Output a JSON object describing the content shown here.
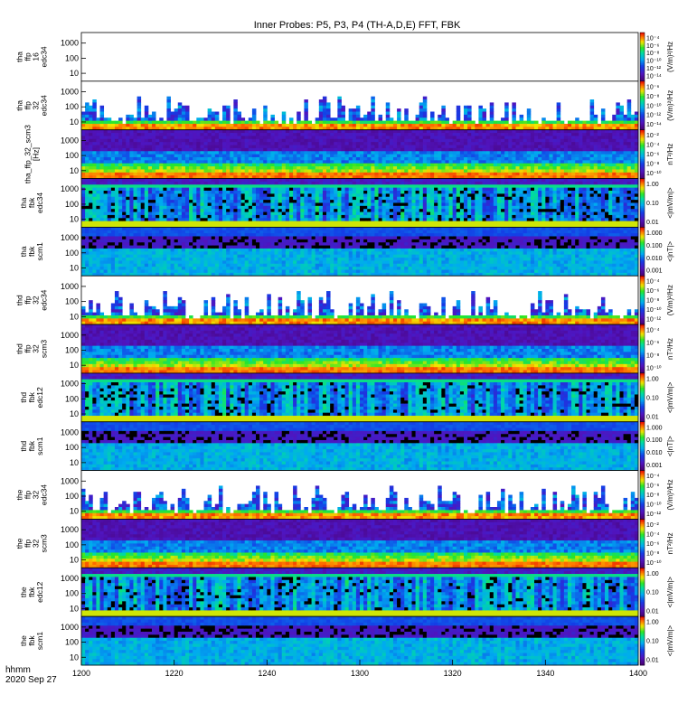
{
  "chart_data": {
    "type": "heatmap",
    "title": "Inner Probes: P5, P3, P4 (TH-A,D,E) FFT, FBK",
    "time_axis": {
      "start": "1200",
      "end": "1400",
      "tick_labels": [
        "1200",
        "1220",
        "1240",
        "1300",
        "1320",
        "1340",
        "1400"
      ],
      "label_format": "hhmm",
      "date": "2020 Sep 27"
    },
    "freq_tick_labels": [
      "1000",
      "100",
      "10"
    ],
    "panels": [
      {
        "ylabel": [
          "tha",
          "ffp",
          "16",
          "edc34"
        ],
        "ytick_labels": [
          "1000",
          "100",
          "10"
        ],
        "colorbar_ticks": [
          "10⁻⁴",
          "10⁻⁶",
          "10⁻⁸",
          "10⁻¹⁰",
          "10⁻¹²",
          "10⁻¹⁴"
        ],
        "colorbar_label": "(V/m)²/Hz",
        "style": "empty"
      },
      {
        "ylabel": [
          "tha",
          "ffp",
          "32",
          "edc34"
        ],
        "ytick_labels": [
          "1000",
          "100",
          "10"
        ],
        "colorbar_ticks": [
          "10⁻⁶",
          "10⁻⁸",
          "10⁻¹⁰",
          "10⁻¹²",
          "10⁻¹⁴"
        ],
        "colorbar_label": "(V/m)²/Hz",
        "style": "sparse"
      },
      {
        "ylabel": [
          "tha_ffp_32_scm3",
          "[Hz]"
        ],
        "ytick_labels": [
          "1000",
          "100",
          "10"
        ],
        "colorbar_ticks": [
          "10⁻²",
          "10⁻⁴",
          "10⁻⁶",
          "10⁻⁸",
          "10⁻¹⁰"
        ],
        "colorbar_label": "nT²/Hz",
        "style": "scm"
      },
      {
        "ylabel": [
          "tha",
          "fbk",
          "edc34"
        ],
        "ytick_labels": [
          "1000",
          "100",
          "10"
        ],
        "colorbar_ticks": [
          "1.00",
          "0.10",
          "0.01"
        ],
        "colorbar_label": "<|mV/m|>",
        "style": "fbk"
      },
      {
        "ylabel": [
          "tha",
          "fbk",
          "scm1"
        ],
        "ytick_labels": [
          "1000",
          "100",
          "10"
        ],
        "colorbar_ticks": [
          "1.000",
          "0.100",
          "0.010",
          "0.001"
        ],
        "colorbar_label": "<|nT|>",
        "style": "fbkscm"
      },
      {
        "ylabel": [
          "thd",
          "ffp",
          "32",
          "edc34"
        ],
        "ytick_labels": [
          "1000",
          "100",
          "10"
        ],
        "colorbar_ticks": [
          "10⁻⁴",
          "10⁻⁶",
          "10⁻⁸",
          "10⁻¹⁰",
          "10⁻¹²"
        ],
        "colorbar_label": "(V/m)²/Hz",
        "style": "sparse"
      },
      {
        "ylabel": [
          "thd",
          "ffp",
          "32",
          "scm3"
        ],
        "ytick_labels": [
          "1000",
          "100",
          "10"
        ],
        "colorbar_ticks": [
          "10⁻⁴",
          "10⁻⁶",
          "10⁻⁸",
          "10⁻¹⁰"
        ],
        "colorbar_label": "nT²/Hz",
        "style": "scm"
      },
      {
        "ylabel": [
          "thd",
          "fbk",
          "edc12"
        ],
        "ytick_labels": [
          "1000",
          "100",
          "10"
        ],
        "colorbar_ticks": [
          "1.00",
          "0.10",
          "0.01"
        ],
        "colorbar_label": "<|mV/m|>",
        "style": "fbk"
      },
      {
        "ylabel": [
          "thd",
          "fbk",
          "scm1"
        ],
        "ytick_labels": [
          "1000",
          "100",
          "10"
        ],
        "colorbar_ticks": [
          "1.000",
          "0.100",
          "0.010",
          "0.001"
        ],
        "colorbar_label": "<|nT|>",
        "style": "fbkscm"
      },
      {
        "ylabel": [
          "the",
          "ffp",
          "32",
          "edc34"
        ],
        "ytick_labels": [
          "1000",
          "100",
          "10"
        ],
        "colorbar_ticks": [
          "10⁻⁴",
          "10⁻⁶",
          "10⁻⁸",
          "10⁻¹⁰",
          "10⁻¹²"
        ],
        "colorbar_label": "(V/m)²/Hz",
        "style": "sparse"
      },
      {
        "ylabel": [
          "the",
          "ffp",
          "32",
          "scm3"
        ],
        "ytick_labels": [
          "1000",
          "100",
          "10"
        ],
        "colorbar_ticks": [
          "10⁻²",
          "10⁻⁴",
          "10⁻⁶",
          "10⁻⁸",
          "10⁻¹⁰"
        ],
        "colorbar_label": "nT²/Hz",
        "style": "scm"
      },
      {
        "ylabel": [
          "the",
          "fbk",
          "edc12"
        ],
        "ytick_labels": [
          "1000",
          "100",
          "10"
        ],
        "colorbar_ticks": [
          "1.00",
          "0.10",
          "0.01"
        ],
        "colorbar_label": "<|mV/m|>",
        "style": "fbk"
      },
      {
        "ylabel": [
          "the",
          "fbk",
          "scm1"
        ],
        "ytick_labels": [
          "1000",
          "100",
          "10"
        ],
        "colorbar_ticks": [
          "1.00",
          "0.10",
          "0.01"
        ],
        "colorbar_label": "<|mV/m|>",
        "style": "fbkscm"
      }
    ]
  }
}
